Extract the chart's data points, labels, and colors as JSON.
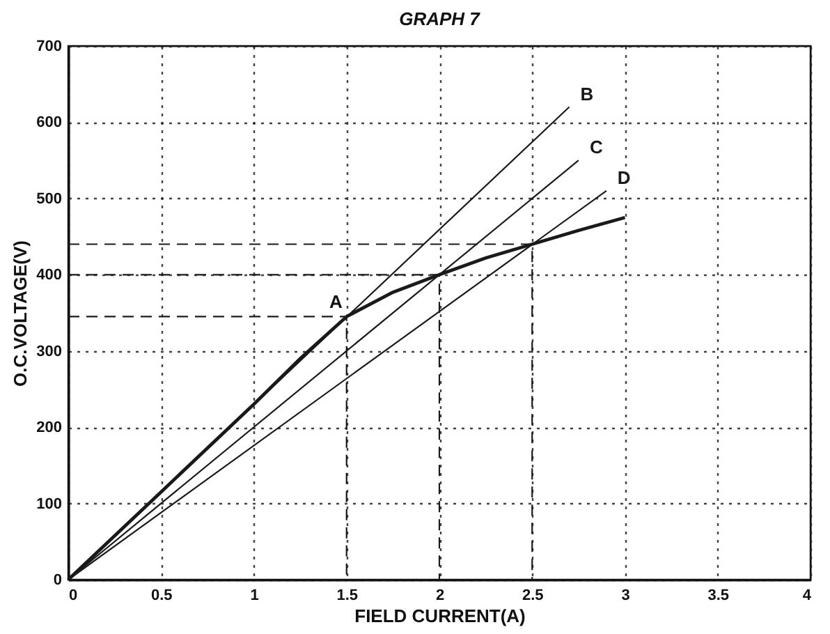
{
  "chart_data": {
    "type": "line",
    "title": "GRAPH 7",
    "xlabel": "FIELD CURRENT(A)",
    "ylabel": "O.C.VOLTAGE(V)",
    "xlim": [
      0,
      4
    ],
    "ylim": [
      0,
      700
    ],
    "xticks": [
      0,
      0.5,
      1,
      1.5,
      2,
      2.5,
      3,
      3.5,
      4
    ],
    "yticks": [
      0,
      100,
      200,
      300,
      400,
      500,
      600,
      700
    ],
    "grid": true,
    "series": [
      {
        "color": "#1a1a1a",
        "line_style": "solid",
        "x": [
          0,
          0.5,
          1,
          1.25,
          1.5,
          1.75,
          2,
          2.25,
          2.5,
          2.75,
          3
        ],
        "values": [
          0,
          115,
          230,
          290,
          345,
          377,
          400,
          422,
          440,
          458,
          475
        ]
      },
      {
        "name": "B",
        "color": "#1a1a1a",
        "line_style": "solid",
        "x": [
          0,
          2.7
        ],
        "values": [
          0,
          620
        ]
      },
      {
        "name": "C",
        "color": "#1a1a1a",
        "line_style": "solid",
        "x": [
          0,
          2.75
        ],
        "values": [
          0,
          550
        ]
      },
      {
        "name": "D",
        "color": "#1a1a1a",
        "line_style": "solid",
        "x": [
          0,
          2.9
        ],
        "values": [
          0,
          510
        ]
      },
      {
        "color": "#1a1a1a",
        "line_style": "dashed",
        "x": [
          0,
          1.5,
          1.5
        ],
        "values": [
          345,
          345,
          0
        ]
      },
      {
        "color": "#1a1a1a",
        "line_style": "dashed",
        "x": [
          0,
          2,
          2
        ],
        "values": [
          400,
          400,
          0
        ]
      },
      {
        "color": "#1a1a1a",
        "line_style": "dashed",
        "x": [
          0,
          2.5,
          2.5
        ],
        "values": [
          440,
          440,
          0
        ]
      }
    ],
    "annotations": [
      {
        "text": "A",
        "x": 1.5,
        "y": 345
      }
    ]
  }
}
